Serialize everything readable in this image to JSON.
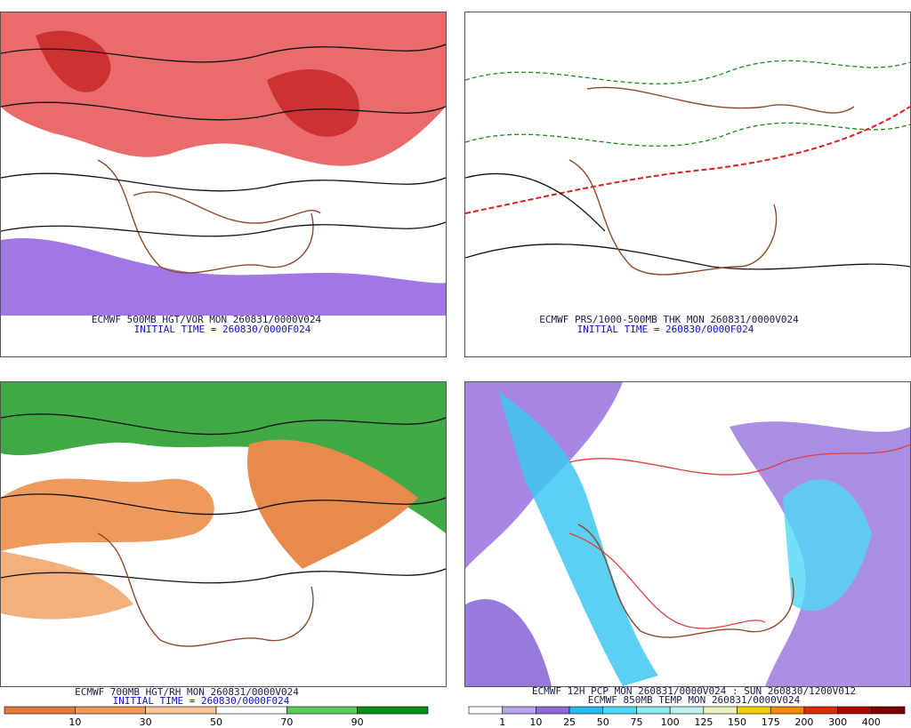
{
  "panels": [
    {
      "caption": "ECMWF 500MB HGT/VOR MON 260831/0000V024",
      "subcaption": "INITIAL TIME = 260830/0000F024"
    },
    {
      "caption": "ECMWF PRS/1000-500MB THK MON 260831/0000V024",
      "subcaption": "INITIAL TIME = 260830/0000F024"
    },
    {
      "caption": "ECMWF 700MB HGT/RH MON 260831/0000V024",
      "subcaption": "INITIAL TIME = 260830/0000F024",
      "colorbar": {
        "colors": [
          "#e07a3c",
          "#ee9a5c",
          "#f6c49a",
          "#ffffff",
          "#5ec85a",
          "#0a8c1a"
        ],
        "labels": [
          10,
          30,
          50,
          70,
          90
        ]
      }
    },
    {
      "caption": "ECMWF 12H PCP MON 260831/0000V024 : SUN 260830/1200V012",
      "subcaption": "ECMWF 850MB TEMP MON 260831/0000V024",
      "colorbar": {
        "colors": [
          "#ffffff",
          "#b9a3ec",
          "#8f6ad8",
          "#2ab8f0",
          "#50d8f8",
          "#8ce8f0",
          "#bdf2ee",
          "#e8f0c0",
          "#f0d000",
          "#f08a00",
          "#e02a00",
          "#b00000",
          "#7a0000"
        ],
        "labels": [
          1,
          10,
          25,
          50,
          75,
          100,
          125,
          150,
          175,
          200,
          300,
          400
        ]
      }
    }
  ]
}
